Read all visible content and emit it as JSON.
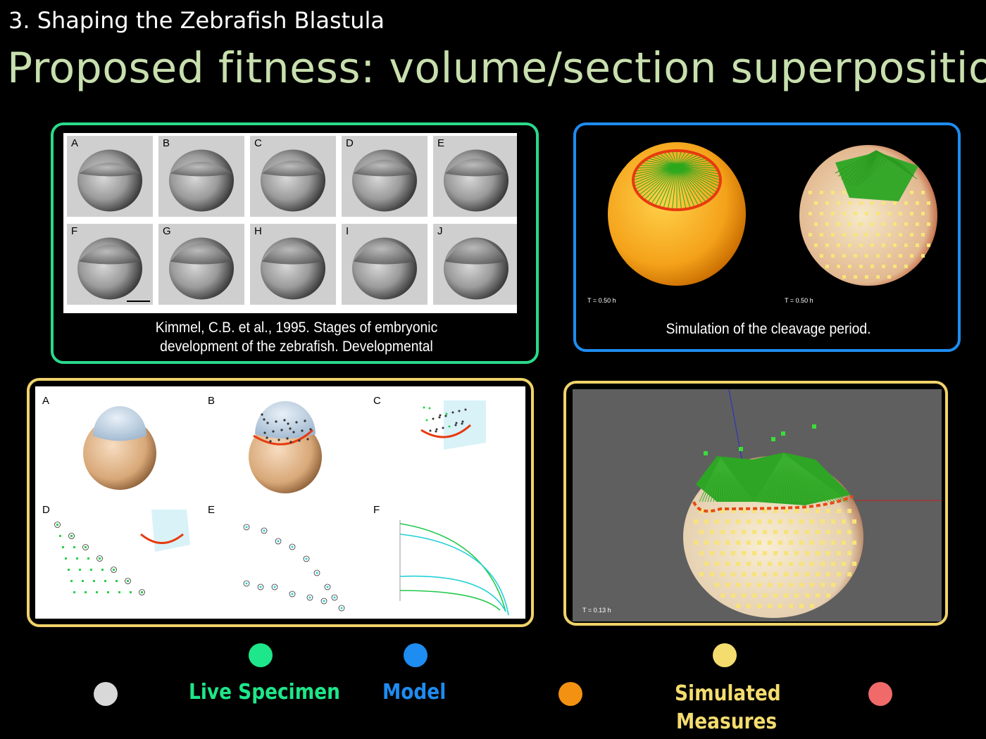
{
  "header": {
    "section_title": "3. Shaping the Zebrafish Blastula",
    "main_title": "Proposed fitness: volume/section superposition"
  },
  "live_panel": {
    "cell_labels": [
      "A",
      "B",
      "C",
      "D",
      "E",
      "F",
      "G",
      "H",
      "I",
      "J"
    ],
    "caption_line1": "Kimmel, C.B. et al., 1995. Stages of embryonic",
    "caption_line2": "development of the zebrafish. Developmental"
  },
  "model_panel": {
    "time_left": "T = 0.50 h",
    "time_right": "T = 0.50 h",
    "caption": "Simulation of the cleavage period."
  },
  "sim_panel_a": {
    "labels": [
      "A",
      "B",
      "C",
      "D",
      "E",
      "F"
    ]
  },
  "sim_panel_b": {
    "time": "T = 0.13 h"
  },
  "legend": {
    "live_label": "Live Specimen",
    "model_label": "Model",
    "sim_label_line1": "Simulated",
    "sim_label_line2": "Measures",
    "colors": {
      "live": "#1ee68a",
      "model": "#1e8cf0",
      "sim": "#f4dc6e",
      "grey": "#d8d8d8",
      "orange": "#f39212",
      "red": "#f06a6a"
    }
  }
}
